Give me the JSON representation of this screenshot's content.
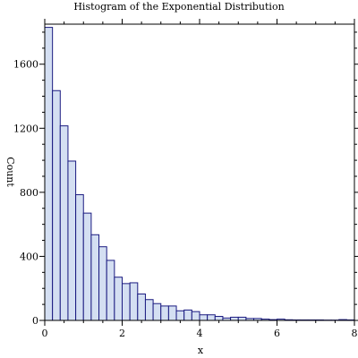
{
  "chart_data": {
    "type": "bar",
    "title": "Histogram of the Exponential Distribution",
    "xlabel": "x",
    "ylabel": "Count",
    "xlim": [
      0,
      8
    ],
    "ylim": [
      0,
      1850
    ],
    "bin_width": 0.2,
    "bin_starts": [
      0.0,
      0.2,
      0.4,
      0.6,
      0.8,
      1.0,
      1.2,
      1.4,
      1.6,
      1.8,
      2.0,
      2.2,
      2.4,
      2.6,
      2.8,
      3.0,
      3.2,
      3.4,
      3.6,
      3.8,
      4.0,
      4.2,
      4.4,
      4.6,
      4.8,
      5.0,
      5.2,
      5.4,
      5.6,
      5.8,
      6.0,
      6.2,
      6.4,
      6.6,
      6.8,
      7.0,
      7.2,
      7.4,
      7.6,
      7.8
    ],
    "values": [
      1830,
      1435,
      1215,
      995,
      785,
      670,
      535,
      460,
      375,
      270,
      230,
      235,
      165,
      130,
      105,
      90,
      90,
      60,
      65,
      55,
      35,
      35,
      25,
      15,
      20,
      20,
      12,
      12,
      8,
      5,
      8,
      4,
      3,
      3,
      3,
      3,
      2,
      2,
      5,
      3
    ],
    "x_ticks": [
      0,
      2,
      4,
      6,
      8
    ],
    "x_tick_labels": [
      "0",
      "2",
      "4",
      "6",
      "8"
    ],
    "y_ticks": [
      0,
      400,
      800,
      1200,
      1600
    ],
    "y_tick_labels": [
      "0",
      "400",
      "800",
      "1200",
      "1600"
    ],
    "grid": false,
    "legend": "none",
    "colors": {
      "bar_fill": "#d4dff2",
      "bar_stroke": "#1a1a80"
    }
  }
}
